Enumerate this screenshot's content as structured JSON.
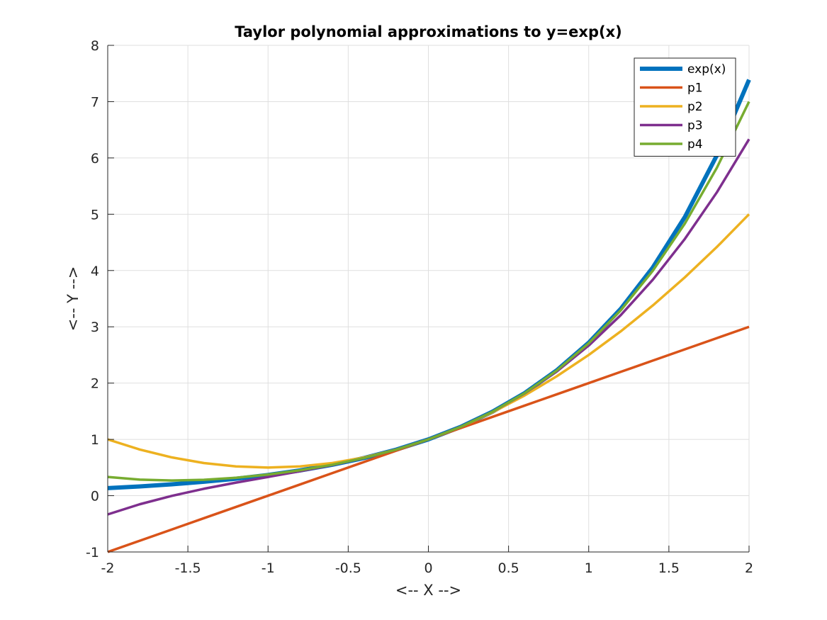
{
  "chart_data": {
    "type": "line",
    "title": "Taylor polynomial approximations to y=exp(x)",
    "xlabel": "<-- X -->",
    "ylabel": "<-- Y -->",
    "xlim": [
      -2,
      2
    ],
    "ylim": [
      -1,
      8
    ],
    "xticks": [
      -2,
      -1.5,
      -1,
      -0.5,
      0,
      0.5,
      1,
      1.5,
      2
    ],
    "xtick_labels": [
      "-2",
      "-1.5",
      "-1",
      "-0.5",
      "0",
      "0.5",
      "1",
      "1.5",
      "2"
    ],
    "yticks": [
      -1,
      0,
      1,
      2,
      3,
      4,
      5,
      6,
      7,
      8
    ],
    "ytick_labels": [
      "-1",
      "0",
      "1",
      "2",
      "3",
      "4",
      "5",
      "6",
      "7",
      "8"
    ],
    "grid": true,
    "legend_position": "top-right",
    "x": [
      -2,
      -1.8,
      -1.6,
      -1.4,
      -1.2,
      -1,
      -0.8,
      -0.6,
      -0.4,
      -0.2,
      0,
      0.2,
      0.4,
      0.6,
      0.8,
      1,
      1.2,
      1.4,
      1.6,
      1.8,
      2
    ],
    "series": [
      {
        "name": "exp(x)",
        "color": "#0072BD",
        "emphasis": "thick",
        "values": [
          0.135,
          0.165,
          0.202,
          0.247,
          0.301,
          0.368,
          0.449,
          0.549,
          0.67,
          0.819,
          1.0,
          1.221,
          1.492,
          1.822,
          2.226,
          2.718,
          3.32,
          4.055,
          4.953,
          6.05,
          7.389
        ]
      },
      {
        "name": "p1",
        "color": "#D95319",
        "values": [
          -1.0,
          -0.8,
          -0.6,
          -0.4,
          -0.2,
          0.0,
          0.2,
          0.4,
          0.6,
          0.8,
          1.0,
          1.2,
          1.4,
          1.6,
          1.8,
          2.0,
          2.2,
          2.4,
          2.6,
          2.8,
          3.0
        ]
      },
      {
        "name": "p2",
        "color": "#EDB120",
        "values": [
          1.0,
          0.82,
          0.68,
          0.58,
          0.52,
          0.5,
          0.52,
          0.58,
          0.68,
          0.82,
          1.0,
          1.22,
          1.48,
          1.78,
          2.12,
          2.5,
          2.92,
          3.38,
          3.88,
          4.42,
          5.0
        ]
      },
      {
        "name": "p3",
        "color": "#7E2F8E",
        "values": [
          -0.333,
          -0.152,
          -0.003,
          0.123,
          0.232,
          0.333,
          0.435,
          0.544,
          0.669,
          0.819,
          1.0,
          1.221,
          1.491,
          1.816,
          2.205,
          2.667,
          3.208,
          3.837,
          4.563,
          5.392,
          6.333
        ]
      },
      {
        "name": "p4",
        "color": "#77AC30",
        "values": [
          0.333,
          0.285,
          0.27,
          0.283,
          0.318,
          0.375,
          0.452,
          0.549,
          0.67,
          0.819,
          1.0,
          1.221,
          1.492,
          1.821,
          2.222,
          2.708,
          3.294,
          3.997,
          4.836,
          5.829,
          7.0
        ]
      }
    ]
  }
}
